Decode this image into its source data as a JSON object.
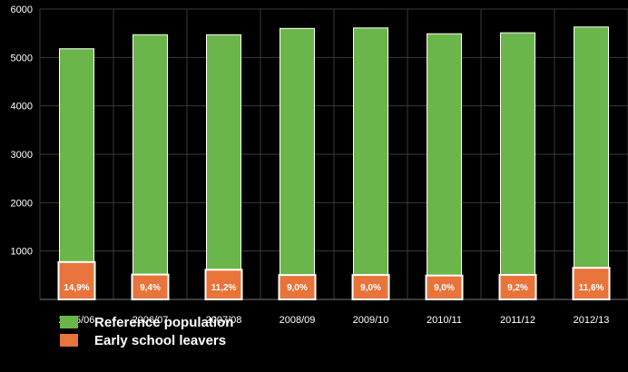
{
  "chart_data": {
    "type": "bar",
    "categories": [
      "2005/06",
      "2006/07",
      "2007/08",
      "2008/09",
      "2009/10",
      "2010/11",
      "2011/12",
      "2012/13"
    ],
    "series": [
      {
        "name": "Reference population",
        "values": [
          5180,
          5470,
          5470,
          5600,
          5610,
          5490,
          5510,
          5630
        ]
      },
      {
        "name": "Early school leavers",
        "values": [
          772,
          514,
          613,
          504,
          505,
          494,
          507,
          653
        ]
      }
    ],
    "data_labels": [
      "14,9%",
      "9,4%",
      "11,2%",
      "9,0%",
      "9,0%",
      "9,0%",
      "9,2%",
      "11,6%"
    ],
    "y_ticks": [
      "1000",
      "2000",
      "3000",
      "4000",
      "5000",
      "6000"
    ],
    "ylim": [
      0,
      6000
    ],
    "grid": true,
    "legend_position": "bottom-left",
    "colors": {
      "reference": "#6bb64a",
      "leavers": "#e8743b",
      "background": "#000000",
      "grid": "#3a3a3a",
      "text": "#ffffff"
    }
  },
  "legend": {
    "items": [
      {
        "label": "Reference population",
        "color": "#6bb64a"
      },
      {
        "label": "Early school leavers",
        "color": "#e8743b"
      }
    ]
  }
}
